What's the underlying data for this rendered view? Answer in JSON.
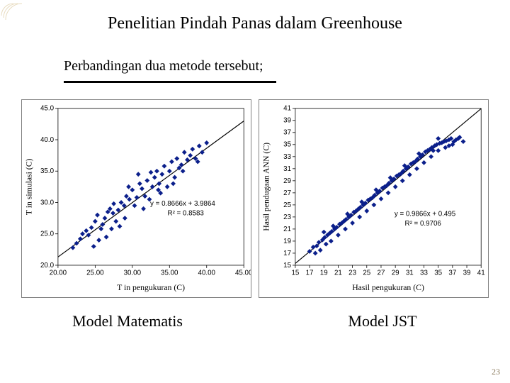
{
  "slide": {
    "title": "Penelitian Pindah Panas dalam Greenhouse",
    "subtitle": "Perbandingan dua metode tersebut;",
    "page_number": "23",
    "title_fontsize": 24,
    "subtitle_fontsize": 20,
    "background_color": "#ffffff",
    "corner_decoration_color": "#e8dcc0"
  },
  "chart_left": {
    "type": "scatter",
    "caption": "Model Matematis",
    "xlabel": "T in pengukuran (C)",
    "ylabel": "T in simulasi (C)",
    "label_fontsize": 12,
    "tick_fontsize": 10,
    "xlim": [
      20,
      45
    ],
    "ylim": [
      20,
      45
    ],
    "xtick_step": 5,
    "ytick_step": 5,
    "xtick_labels": [
      "20.00",
      "25.00",
      "30.00",
      "35.00",
      "40.00",
      "45.00"
    ],
    "ytick_labels": [
      "20.0",
      "25.0",
      "30.0",
      "35.0",
      "40.0",
      "45.0"
    ],
    "marker_color": "#0b1f8b",
    "marker_size": 3.5,
    "marker_shape": "diamond",
    "trendline_color": "#000000",
    "trendline_width": 1.2,
    "grid": false,
    "background_color": "#ffffff",
    "equation": "y = 0.8666x + 3.9864",
    "r2": "R² = 0.8583",
    "eq_fontsize": 10,
    "trend": {
      "slope": 0.8666,
      "intercept": 3.9864
    },
    "points": [
      [
        22.0,
        22.8
      ],
      [
        22.5,
        23.5
      ],
      [
        23.0,
        24.2
      ],
      [
        23.3,
        25.0
      ],
      [
        23.8,
        25.5
      ],
      [
        24.1,
        24.8
      ],
      [
        24.5,
        26.0
      ],
      [
        25.0,
        27.0
      ],
      [
        25.3,
        28.0
      ],
      [
        25.8,
        25.8
      ],
      [
        26.0,
        26.5
      ],
      [
        26.3,
        27.5
      ],
      [
        26.7,
        28.5
      ],
      [
        27.0,
        29.0
      ],
      [
        27.4,
        28.3
      ],
      [
        27.8,
        27.0
      ],
      [
        28.1,
        28.8
      ],
      [
        28.5,
        30.0
      ],
      [
        28.9,
        29.5
      ],
      [
        29.2,
        31.0
      ],
      [
        29.6,
        30.5
      ],
      [
        30.0,
        32.0
      ],
      [
        30.3,
        29.5
      ],
      [
        30.6,
        30.8
      ],
      [
        31.0,
        33.0
      ],
      [
        31.3,
        32.2
      ],
      [
        31.7,
        31.0
      ],
      [
        32.0,
        33.5
      ],
      [
        32.3,
        30.5
      ],
      [
        32.7,
        32.5
      ],
      [
        33.0,
        34.0
      ],
      [
        33.3,
        35.0
      ],
      [
        33.6,
        33.0
      ],
      [
        34.0,
        34.5
      ],
      [
        34.3,
        35.8
      ],
      [
        34.7,
        32.5
      ],
      [
        35.0,
        35.0
      ],
      [
        35.3,
        36.5
      ],
      [
        35.7,
        34.0
      ],
      [
        36.0,
        37.0
      ],
      [
        36.3,
        35.5
      ],
      [
        36.6,
        36.0
      ],
      [
        37.0,
        38.0
      ],
      [
        37.4,
        36.8
      ],
      [
        37.8,
        37.5
      ],
      [
        38.1,
        38.5
      ],
      [
        38.5,
        37.0
      ],
      [
        39.0,
        39.0
      ],
      [
        39.4,
        38.0
      ],
      [
        40.0,
        39.5
      ],
      [
        25.5,
        24.0
      ],
      [
        27.2,
        25.8
      ],
      [
        29.0,
        27.5
      ],
      [
        31.5,
        29.0
      ],
      [
        33.8,
        31.5
      ],
      [
        35.5,
        33.0
      ],
      [
        30.8,
        34.5
      ],
      [
        28.3,
        26.2
      ],
      [
        26.5,
        24.5
      ],
      [
        24.8,
        23.0
      ],
      [
        33.5,
        32.0
      ],
      [
        36.8,
        35.0
      ],
      [
        38.8,
        36.5
      ],
      [
        32.5,
        34.8
      ],
      [
        29.5,
        32.5
      ],
      [
        27.5,
        29.8
      ]
    ]
  },
  "chart_right": {
    "type": "scatter",
    "caption": "Model JST",
    "xlabel": "Hasil pengukuran (C)",
    "ylabel": "Hasil pendugaan ANN (C)",
    "label_fontsize": 12,
    "tick_fontsize": 10,
    "xlim": [
      15,
      41
    ],
    "ylim": [
      15,
      41
    ],
    "xtick_step": 2,
    "ytick_step": 2,
    "xtick_labels": [
      "15",
      "17",
      "19",
      "21",
      "23",
      "25",
      "27",
      "29",
      "31",
      "33",
      "35",
      "37",
      "39",
      "41"
    ],
    "ytick_labels": [
      "15",
      "17",
      "19",
      "21",
      "23",
      "25",
      "27",
      "29",
      "31",
      "33",
      "35",
      "37",
      "39",
      "41"
    ],
    "marker_color": "#0b1f8b",
    "marker_size": 3.5,
    "marker_shape": "diamond",
    "trendline_color": "#000000",
    "trendline_width": 1.2,
    "grid": false,
    "background_color": "#ffffff",
    "equation": "y = 0.9866x + 0.495",
    "r2": "R² = 0.9706",
    "eq_fontsize": 10,
    "trend": {
      "slope": 0.9866,
      "intercept": 0.495
    },
    "points": [
      [
        17.0,
        17.3
      ],
      [
        17.5,
        18.0
      ],
      [
        18.0,
        18.2
      ],
      [
        18.3,
        18.8
      ],
      [
        18.8,
        19.2
      ],
      [
        19.1,
        19.6
      ],
      [
        19.5,
        20.0
      ],
      [
        19.8,
        20.3
      ],
      [
        20.1,
        20.6
      ],
      [
        20.5,
        21.0
      ],
      [
        20.8,
        21.3
      ],
      [
        21.2,
        21.8
      ],
      [
        21.5,
        22.0
      ],
      [
        21.8,
        22.3
      ],
      [
        22.1,
        22.6
      ],
      [
        22.5,
        23.0
      ],
      [
        22.8,
        23.3
      ],
      [
        23.2,
        23.8
      ],
      [
        23.5,
        24.0
      ],
      [
        23.8,
        24.3
      ],
      [
        24.1,
        24.6
      ],
      [
        24.5,
        25.0
      ],
      [
        24.8,
        25.3
      ],
      [
        25.2,
        25.8
      ],
      [
        25.5,
        26.0
      ],
      [
        25.8,
        26.2
      ],
      [
        26.1,
        26.6
      ],
      [
        26.5,
        27.0
      ],
      [
        26.8,
        27.3
      ],
      [
        27.2,
        27.8
      ],
      [
        27.5,
        28.0
      ],
      [
        27.8,
        28.2
      ],
      [
        28.1,
        28.6
      ],
      [
        28.5,
        29.0
      ],
      [
        28.8,
        29.3
      ],
      [
        29.2,
        29.8
      ],
      [
        29.5,
        30.0
      ],
      [
        29.8,
        30.2
      ],
      [
        30.1,
        30.6
      ],
      [
        30.5,
        31.0
      ],
      [
        30.8,
        31.3
      ],
      [
        31.2,
        31.8
      ],
      [
        31.5,
        32.0
      ],
      [
        31.8,
        32.2
      ],
      [
        32.1,
        32.6
      ],
      [
        32.5,
        33.0
      ],
      [
        32.8,
        33.3
      ],
      [
        33.2,
        33.8
      ],
      [
        33.5,
        34.0
      ],
      [
        33.8,
        34.2
      ],
      [
        34.1,
        34.5
      ],
      [
        34.5,
        34.8
      ],
      [
        34.8,
        35.0
      ],
      [
        35.2,
        35.2
      ],
      [
        35.5,
        35.3
      ],
      [
        35.8,
        35.5
      ],
      [
        36.1,
        35.6
      ],
      [
        36.5,
        35.8
      ],
      [
        36.8,
        36.0
      ],
      [
        37.2,
        35.5
      ],
      [
        37.5,
        35.8
      ],
      [
        37.8,
        36.0
      ],
      [
        38.0,
        36.2
      ],
      [
        19.0,
        20.5
      ],
      [
        20.0,
        19.0
      ],
      [
        22.0,
        21.0
      ],
      [
        24.0,
        23.0
      ],
      [
        26.0,
        25.0
      ],
      [
        28.0,
        27.0
      ],
      [
        30.0,
        29.0
      ],
      [
        32.0,
        31.0
      ],
      [
        34.0,
        33.0
      ],
      [
        18.5,
        17.5
      ],
      [
        21.0,
        20.0
      ],
      [
        23.0,
        22.0
      ],
      [
        25.0,
        24.0
      ],
      [
        27.0,
        26.0
      ],
      [
        29.0,
        28.0
      ],
      [
        31.0,
        30.0
      ],
      [
        33.0,
        32.0
      ],
      [
        35.0,
        34.0
      ],
      [
        36.0,
        34.5
      ],
      [
        37.0,
        35.0
      ],
      [
        38.5,
        35.5
      ],
      [
        17.8,
        17.0
      ],
      [
        19.3,
        18.5
      ],
      [
        20.3,
        21.5
      ],
      [
        22.3,
        23.5
      ],
      [
        24.3,
        25.5
      ],
      [
        26.3,
        27.5
      ],
      [
        28.3,
        29.5
      ],
      [
        30.3,
        31.5
      ],
      [
        32.3,
        33.5
      ],
      [
        34.3,
        34.0
      ],
      [
        35.0,
        36.0
      ],
      [
        36.5,
        34.8
      ]
    ]
  }
}
